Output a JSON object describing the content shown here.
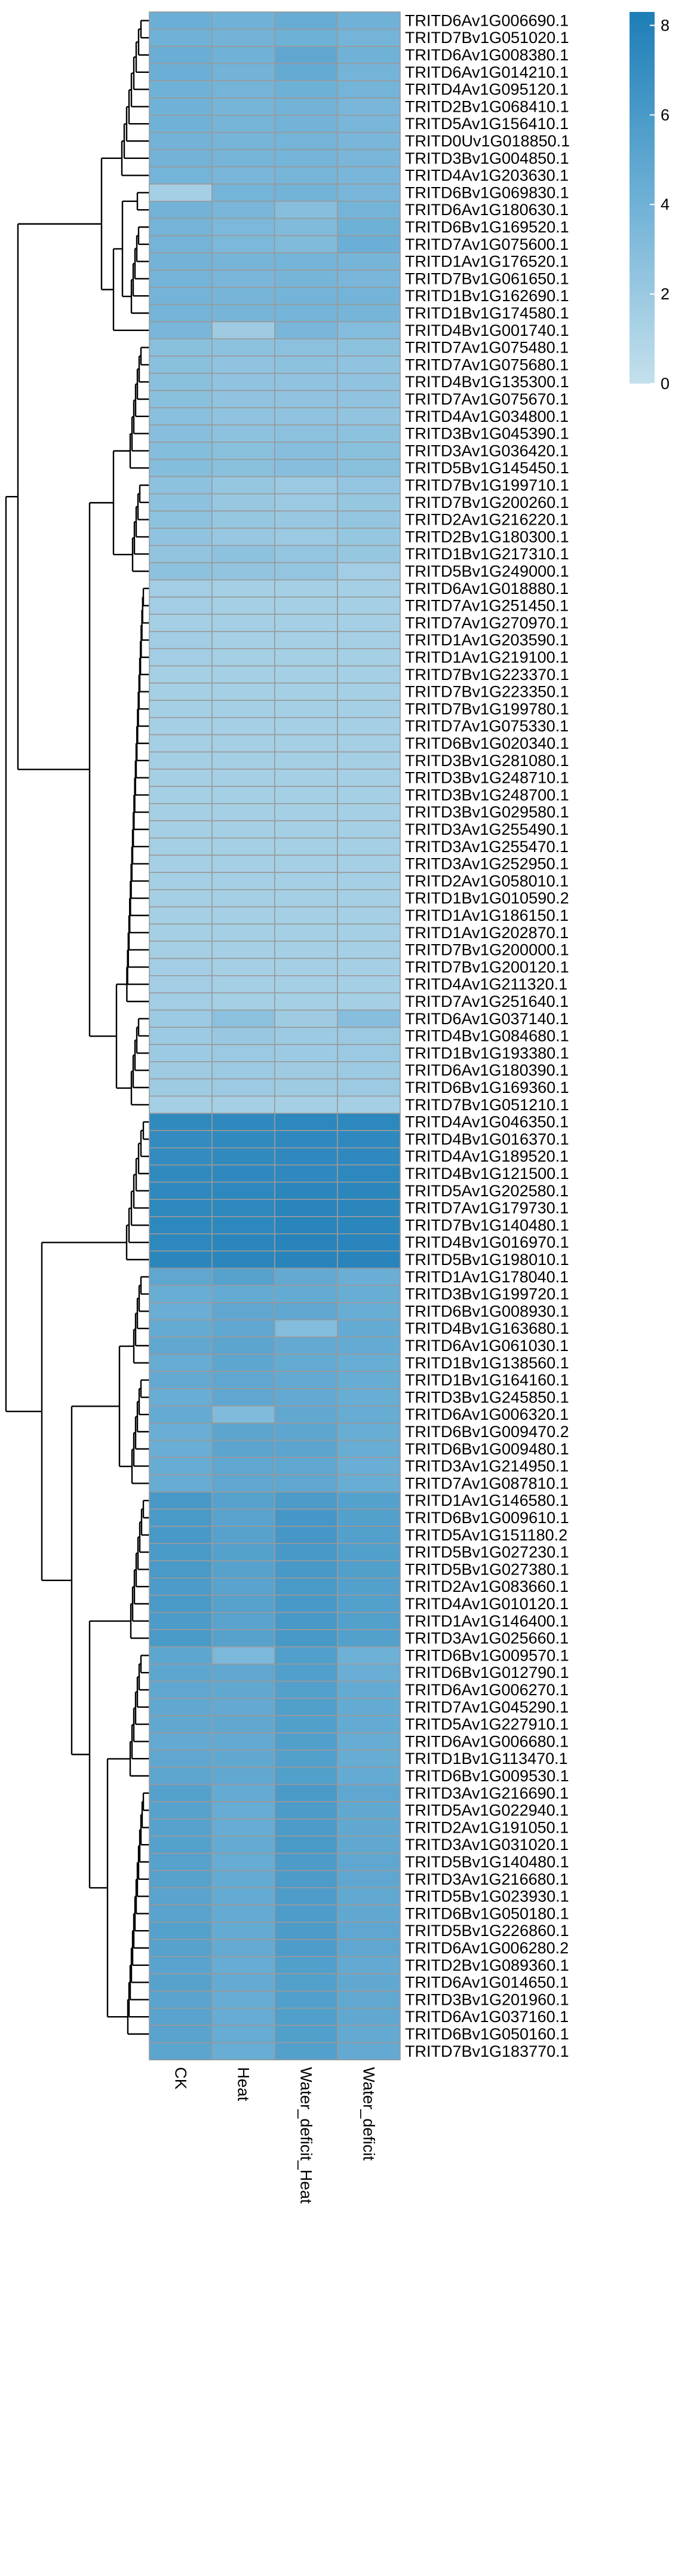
{
  "chart_data": {
    "type": "heatmap",
    "title": "",
    "columns": [
      "CK",
      "Heat",
      "Water_deficit_Heat",
      "Water_deficit"
    ],
    "rows": [
      "TRITD6Av1G006690.1",
      "TRITD7Bv1G051020.1",
      "TRITD6Av1G008380.1",
      "TRITD6Av1G014210.1",
      "TRITD4Av1G095120.1",
      "TRITD2Bv1G068410.1",
      "TRITD5Av1G156410.1",
      "TRITD0Uv1G018850.1",
      "TRITD3Bv1G004850.1",
      "TRITD4Av1G203630.1",
      "TRITD6Bv1G069830.1",
      "TRITD6Av1G180630.1",
      "TRITD6Bv1G169520.1",
      "TRITD7Av1G075600.1",
      "TRITD1Av1G176520.1",
      "TRITD7Bv1G061650.1",
      "TRITD1Bv1G162690.1",
      "TRITD1Bv1G174580.1",
      "TRITD4Bv1G001740.1",
      "TRITD7Av1G075480.1",
      "TRITD7Av1G075680.1",
      "TRITD4Bv1G135300.1",
      "TRITD7Av1G075670.1",
      "TRITD4Av1G034800.1",
      "TRITD3Bv1G045390.1",
      "TRITD3Av1G036420.1",
      "TRITD5Bv1G145450.1",
      "TRITD7Bv1G199710.1",
      "TRITD7Bv1G200260.1",
      "TRITD2Av1G216220.1",
      "TRITD2Bv1G180300.1",
      "TRITD1Bv1G217310.1",
      "TRITD5Bv1G249000.1",
      "TRITD6Av1G018880.1",
      "TRITD7Av1G251450.1",
      "TRITD7Av1G270970.1",
      "TRITD1Av1G203590.1",
      "TRITD1Av1G219100.1",
      "TRITD7Bv1G223370.1",
      "TRITD7Bv1G223350.1",
      "TRITD7Bv1G199780.1",
      "TRITD7Av1G075330.1",
      "TRITD6Bv1G020340.1",
      "TRITD3Bv1G281080.1",
      "TRITD3Bv1G248710.1",
      "TRITD3Bv1G248700.1",
      "TRITD3Bv1G029580.1",
      "TRITD3Av1G255490.1",
      "TRITD3Av1G255470.1",
      "TRITD3Av1G252950.1",
      "TRITD2Av1G058010.1",
      "TRITD1Bv1G010590.2",
      "TRITD1Av1G186150.1",
      "TRITD1Av1G202870.1",
      "TRITD7Bv1G200000.1",
      "TRITD7Bv1G200120.1",
      "TRITD4Av1G211320.1",
      "TRITD7Av1G251640.1",
      "TRITD6Av1G037140.1",
      "TRITD4Bv1G084680.1",
      "TRITD1Bv1G193380.1",
      "TRITD6Av1G180390.1",
      "TRITD6Bv1G169360.1",
      "TRITD7Bv1G051210.1",
      "TRITD4Av1G046350.1",
      "TRITD4Bv1G016370.1",
      "TRITD4Av1G189520.1",
      "TRITD4Bv1G121500.1",
      "TRITD5Av1G202580.1",
      "TRITD7Av1G179730.1",
      "TRITD7Bv1G140480.1",
      "TRITD4Bv1G016970.1",
      "TRITD5Bv1G198010.1",
      "TRITD1Av1G178040.1",
      "TRITD3Bv1G199720.1",
      "TRITD6Bv1G008930.1",
      "TRITD4Bv1G163680.1",
      "TRITD6Av1G061030.1",
      "TRITD1Bv1G138560.1",
      "TRITD1Bv1G164160.1",
      "TRITD3Bv1G245850.1",
      "TRITD6Av1G006320.1",
      "TRITD6Bv1G009470.2",
      "TRITD6Bv1G009480.1",
      "TRITD3Av1G214950.1",
      "TRITD7Av1G087810.1",
      "TRITD1Av1G146580.1",
      "TRITD6Bv1G009610.1",
      "TRITD5Av1G151180.2",
      "TRITD5Bv1G027230.1",
      "TRITD5Bv1G027380.1",
      "TRITD2Av1G083660.1",
      "TRITD4Av1G010120.1",
      "TRITD1Av1G146400.1",
      "TRITD3Av1G025660.1",
      "TRITD6Bv1G009570.1",
      "TRITD6Bv1G012790.1",
      "TRITD6Av1G006270.1",
      "TRITD7Av1G045290.1",
      "TRITD5Av1G227910.1",
      "TRITD6Av1G006680.1",
      "TRITD1Bv1G113470.1",
      "TRITD6Bv1G009530.1",
      "TRITD3Av1G216690.1",
      "TRITD5Av1G022940.1",
      "TRITD2Av1G191050.1",
      "TRITD3Av1G031020.1",
      "TRITD5Bv1G140480.1",
      "TRITD3Av1G216680.1",
      "TRITD5Bv1G023930.1",
      "TRITD6Bv1G050180.1",
      "TRITD5Bv1G226860.1",
      "TRITD6Av1G006280.2",
      "TRITD2Bv1G089360.1",
      "TRITD6Av1G014650.1",
      "TRITD3Bv1G201960.1",
      "TRITD6Av1G037160.1",
      "TRITD6Bv1G050160.1",
      "TRITD7Bv1G183770.1"
    ],
    "values": [
      [
        4.2,
        4.0,
        4.5,
        4.0
      ],
      [
        4.0,
        3.9,
        4.1,
        3.8
      ],
      [
        4.3,
        4.0,
        4.9,
        4.0
      ],
      [
        4.2,
        3.9,
        4.6,
        3.8
      ],
      [
        4.0,
        3.8,
        4.1,
        3.8
      ],
      [
        4.0,
        3.7,
        3.9,
        3.6
      ],
      [
        4.0,
        3.7,
        3.9,
        3.6
      ],
      [
        3.9,
        3.7,
        3.8,
        3.6
      ],
      [
        3.9,
        3.7,
        3.8,
        3.6
      ],
      [
        3.8,
        3.6,
        3.7,
        3.6
      ],
      [
        1.5,
        3.8,
        3.9,
        3.6
      ],
      [
        3.9,
        3.6,
        2.9,
        3.8
      ],
      [
        3.8,
        3.5,
        3.2,
        4.1
      ],
      [
        3.8,
        3.5,
        3.2,
        4.2
      ],
      [
        3.9,
        3.7,
        3.8,
        3.7
      ],
      [
        3.8,
        3.6,
        3.7,
        3.6
      ],
      [
        3.8,
        3.7,
        3.8,
        3.8
      ],
      [
        3.8,
        3.7,
        3.8,
        3.7
      ],
      [
        3.6,
        1.8,
        3.6,
        3.1
      ],
      [
        2.8,
        2.6,
        2.7,
        2.6
      ],
      [
        2.8,
        2.5,
        2.6,
        2.5
      ],
      [
        2.8,
        2.5,
        2.5,
        2.5
      ],
      [
        2.8,
        2.5,
        2.5,
        2.5
      ],
      [
        2.8,
        2.5,
        2.5,
        2.4
      ],
      [
        2.9,
        2.6,
        2.7,
        2.6
      ],
      [
        3.0,
        2.8,
        2.9,
        2.8
      ],
      [
        3.0,
        2.8,
        2.9,
        2.8
      ],
      [
        2.6,
        2.2,
        2.0,
        2.3
      ],
      [
        2.6,
        2.1,
        2.0,
        2.2
      ],
      [
        2.6,
        2.2,
        2.1,
        2.3
      ],
      [
        2.5,
        2.1,
        2.0,
        2.2
      ],
      [
        2.4,
        2.6,
        2.3,
        2.2
      ],
      [
        2.6,
        2.4,
        2.3,
        1.6
      ],
      [
        1.6,
        1.5,
        1.5,
        1.5
      ],
      [
        1.6,
        1.5,
        1.5,
        1.5
      ],
      [
        1.5,
        1.5,
        1.5,
        1.5
      ],
      [
        1.6,
        1.5,
        1.5,
        1.5
      ],
      [
        1.6,
        1.5,
        1.5,
        1.5
      ],
      [
        1.5,
        1.5,
        1.5,
        1.5
      ],
      [
        1.5,
        1.5,
        1.5,
        1.5
      ],
      [
        1.5,
        1.5,
        1.5,
        1.5
      ],
      [
        1.5,
        1.5,
        1.5,
        1.5
      ],
      [
        1.5,
        1.5,
        1.5,
        1.5
      ],
      [
        1.5,
        1.5,
        1.5,
        1.5
      ],
      [
        1.5,
        1.5,
        1.5,
        1.5
      ],
      [
        1.5,
        1.5,
        1.5,
        1.5
      ],
      [
        1.5,
        1.5,
        1.5,
        1.5
      ],
      [
        1.5,
        1.5,
        1.5,
        1.5
      ],
      [
        1.5,
        1.5,
        1.5,
        1.5
      ],
      [
        1.5,
        1.5,
        1.5,
        1.5
      ],
      [
        1.5,
        1.5,
        1.5,
        1.5
      ],
      [
        1.5,
        1.5,
        1.5,
        1.5
      ],
      [
        1.5,
        1.5,
        1.5,
        1.5
      ],
      [
        1.5,
        1.5,
        1.5,
        1.5
      ],
      [
        1.5,
        1.5,
        1.5,
        1.5
      ],
      [
        1.6,
        1.5,
        1.5,
        1.5
      ],
      [
        1.6,
        1.5,
        1.5,
        1.5
      ],
      [
        1.6,
        1.5,
        1.5,
        1.5
      ],
      [
        1.9,
        2.7,
        1.8,
        2.9
      ],
      [
        1.9,
        2.1,
        1.9,
        2.0
      ],
      [
        1.9,
        2.0,
        1.9,
        2.0
      ],
      [
        1.8,
        1.9,
        1.8,
        1.9
      ],
      [
        1.8,
        1.9,
        1.8,
        1.9
      ],
      [
        1.5,
        1.5,
        1.5,
        1.5
      ],
      [
        7.3,
        7.4,
        7.5,
        7.5
      ],
      [
        7.2,
        7.3,
        7.4,
        7.4
      ],
      [
        7.2,
        7.3,
        7.4,
        7.4
      ],
      [
        7.3,
        7.4,
        7.4,
        7.5
      ],
      [
        7.4,
        7.5,
        7.6,
        7.6
      ],
      [
        7.5,
        7.5,
        7.7,
        7.6
      ],
      [
        7.5,
        7.5,
        7.7,
        7.6
      ],
      [
        7.5,
        7.6,
        7.8,
        7.7
      ],
      [
        7.6,
        7.6,
        7.8,
        7.8
      ],
      [
        4.9,
        5.3,
        4.7,
        4.3
      ],
      [
        4.4,
        4.6,
        4.6,
        4.4
      ],
      [
        4.3,
        4.9,
        4.9,
        4.4
      ],
      [
        4.6,
        4.9,
        3.1,
        4.6
      ],
      [
        4.8,
        5.1,
        4.7,
        4.6
      ],
      [
        4.5,
        5.0,
        4.6,
        4.4
      ],
      [
        4.7,
        4.9,
        4.7,
        4.5
      ],
      [
        4.4,
        4.9,
        4.7,
        4.4
      ],
      [
        4.6,
        3.2,
        4.8,
        4.5
      ],
      [
        4.3,
        5.1,
        5.0,
        4.4
      ],
      [
        4.3,
        5.1,
        5.1,
        4.4
      ],
      [
        4.5,
        4.9,
        4.9,
        4.3
      ],
      [
        4.5,
        4.9,
        4.9,
        4.4
      ],
      [
        6.1,
        5.3,
        5.9,
        5.4
      ],
      [
        6.0,
        5.2,
        6.2,
        5.5
      ],
      [
        6.1,
        5.3,
        6.2,
        5.5
      ],
      [
        6.0,
        5.4,
        6.1,
        5.6
      ],
      [
        6.0,
        5.3,
        6.1,
        5.6
      ],
      [
        5.9,
        5.2,
        6.0,
        5.5
      ],
      [
        6.0,
        5.3,
        6.1,
        5.5
      ],
      [
        5.9,
        5.2,
        6.1,
        5.5
      ],
      [
        6.0,
        5.3,
        6.1,
        5.5
      ],
      [
        5.0,
        3.5,
        5.6,
        4.1
      ],
      [
        5.0,
        4.9,
        5.6,
        4.3
      ],
      [
        4.9,
        4.8,
        5.5,
        4.6
      ],
      [
        4.8,
        4.7,
        5.6,
        4.6
      ],
      [
        4.8,
        4.8,
        5.6,
        4.6
      ],
      [
        4.7,
        4.7,
        5.6,
        4.5
      ],
      [
        4.9,
        4.8,
        5.5,
        4.5
      ],
      [
        5.0,
        4.8,
        5.6,
        4.6
      ],
      [
        5.4,
        4.6,
        6.0,
        4.9
      ],
      [
        5.3,
        4.5,
        5.9,
        4.8
      ],
      [
        5.3,
        4.5,
        5.9,
        4.8
      ],
      [
        5.4,
        4.6,
        6.0,
        4.8
      ],
      [
        5.3,
        4.5,
        5.9,
        4.9
      ],
      [
        5.3,
        4.6,
        5.9,
        4.9
      ],
      [
        5.2,
        4.6,
        5.8,
        4.8
      ],
      [
        5.2,
        4.6,
        5.8,
        4.8
      ],
      [
        5.4,
        4.6,
        5.9,
        4.9
      ],
      [
        5.3,
        4.6,
        5.8,
        4.9
      ],
      [
        5.2,
        4.5,
        5.6,
        4.7
      ],
      [
        5.3,
        4.6,
        5.5,
        4.8
      ],
      [
        5.2,
        4.5,
        5.6,
        4.8
      ],
      [
        5.2,
        4.5,
        5.6,
        4.8
      ],
      [
        5.2,
        4.5,
        5.6,
        4.7
      ],
      [
        5.1,
        4.4,
        5.5,
        4.7
      ]
    ],
    "color_scale": {
      "min": 0,
      "max": 8.3,
      "low_color": "#c4e0ec",
      "high_color": "#1e7eb7"
    },
    "legend": {
      "ticks": [
        "0",
        "2",
        "4",
        "6",
        "8"
      ],
      "tick_values": [
        0,
        2,
        4,
        6,
        8
      ],
      "position": "top-right"
    }
  }
}
